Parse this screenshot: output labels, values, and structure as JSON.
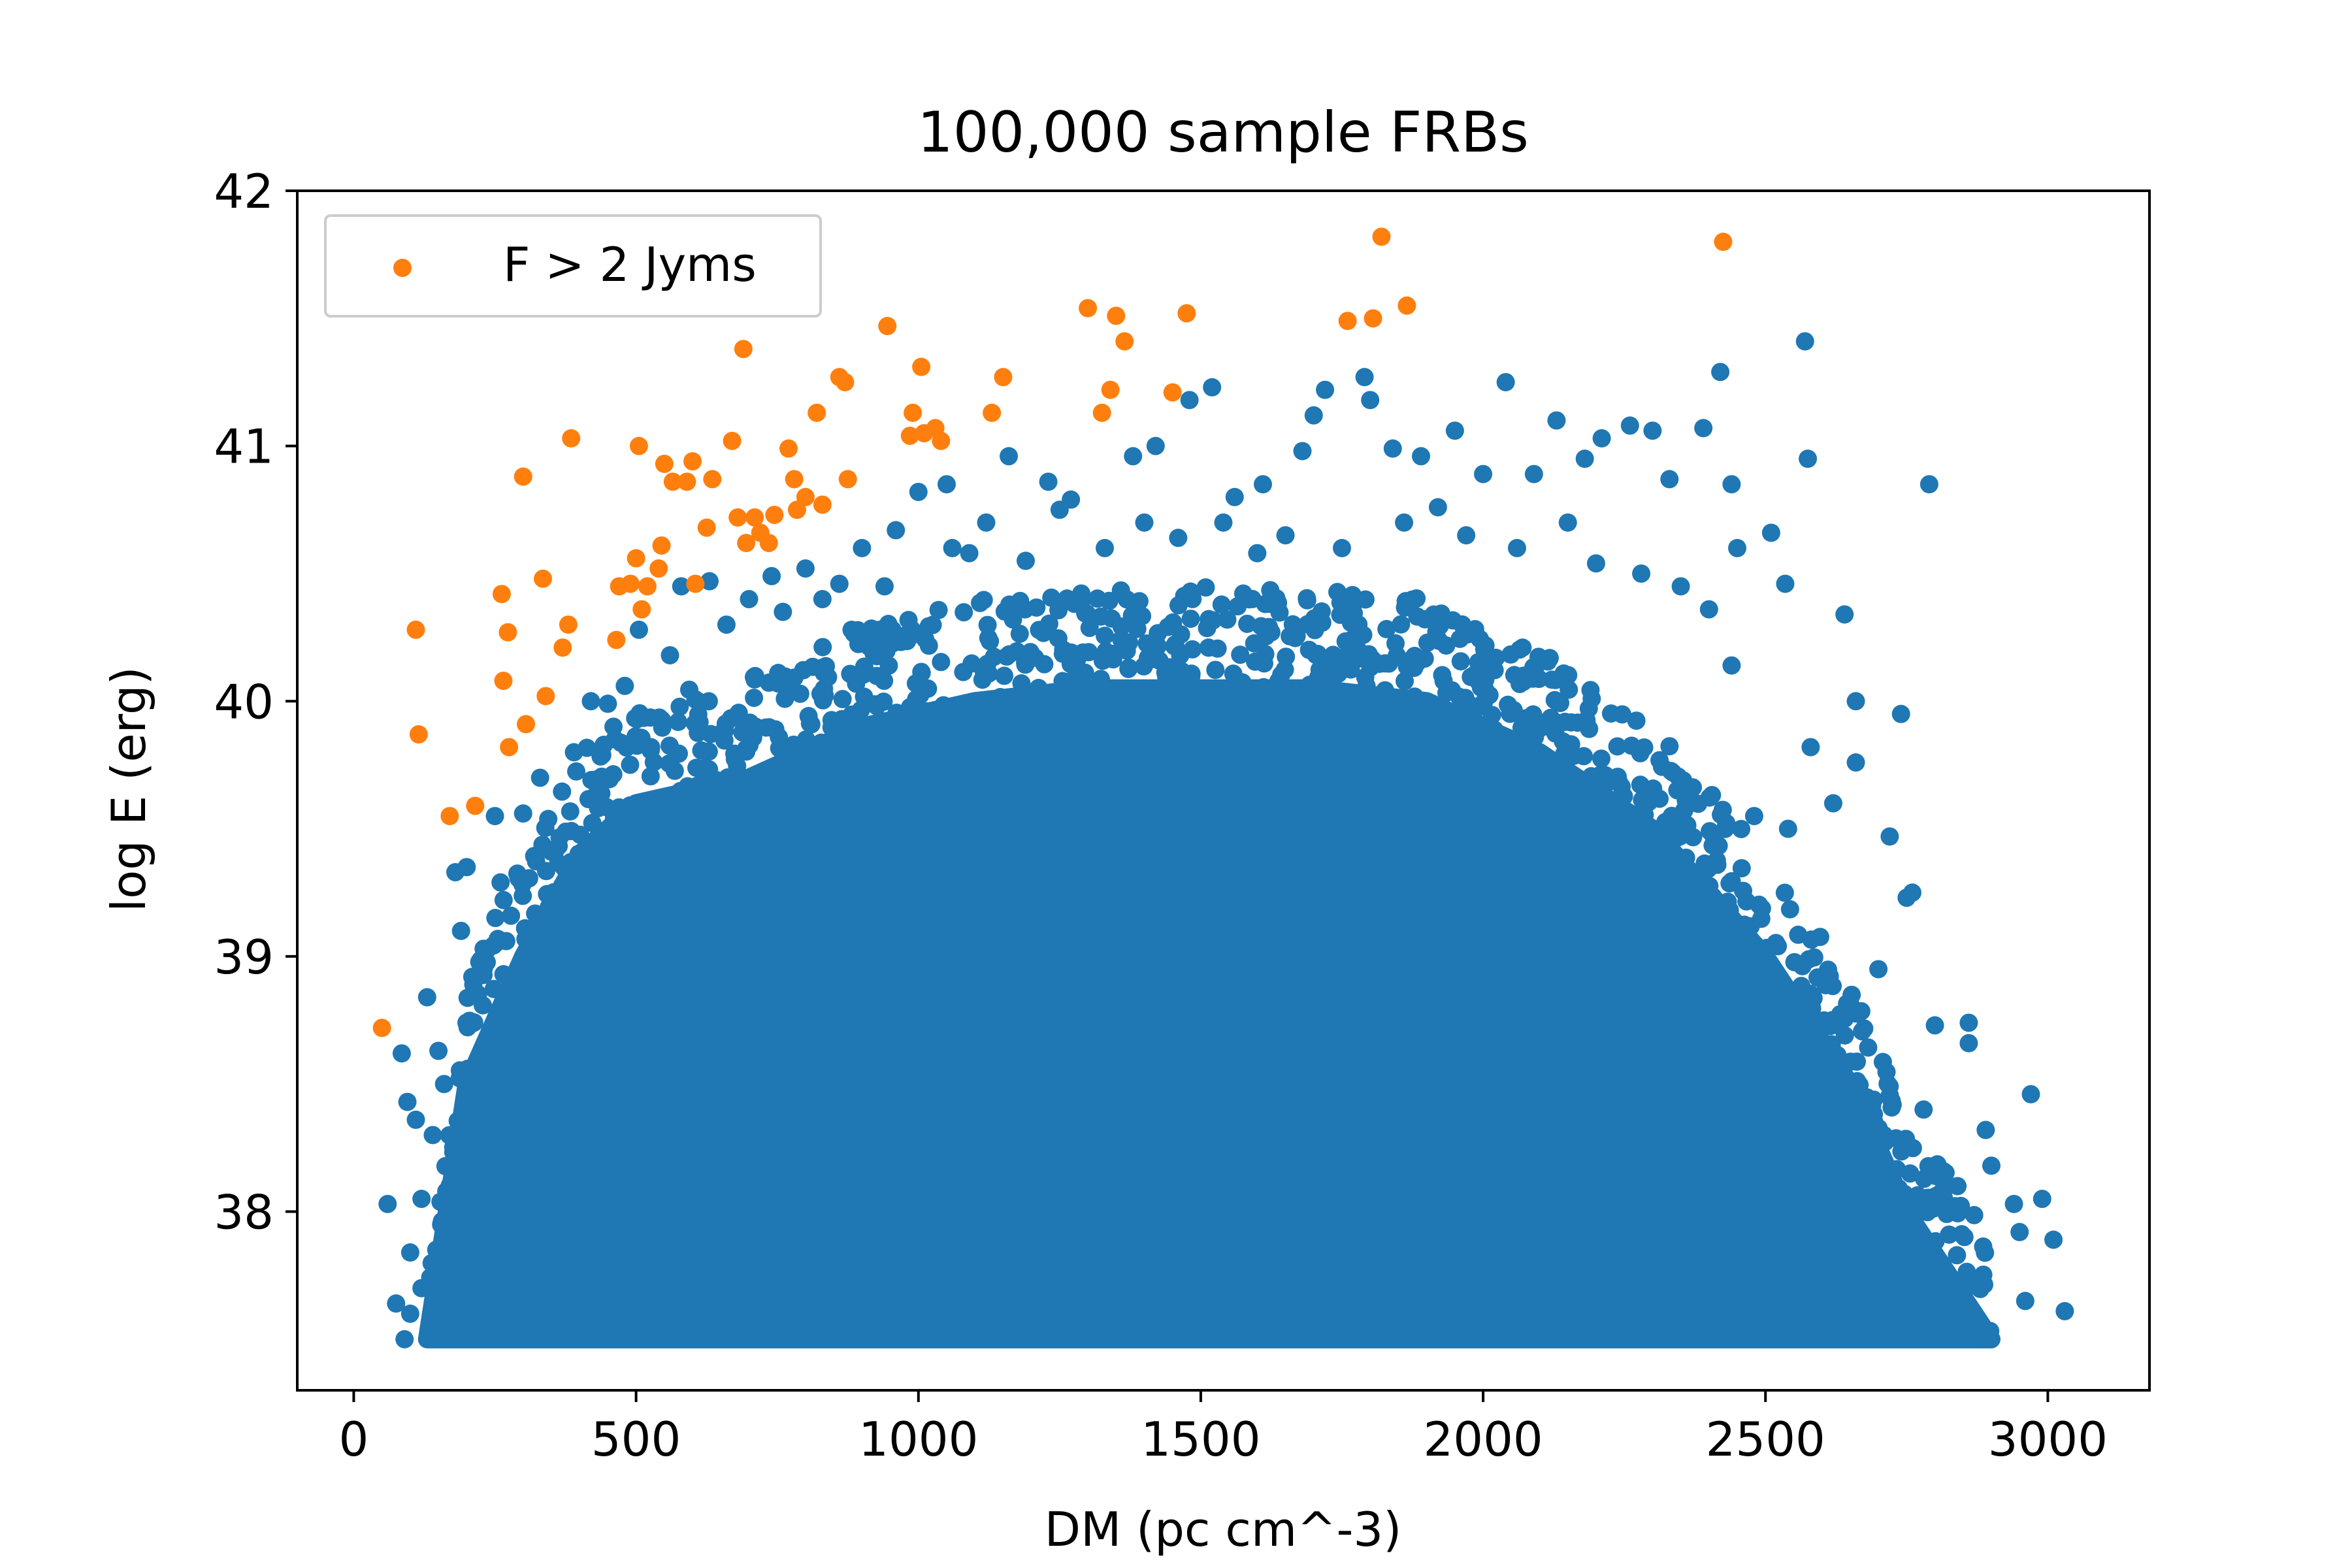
{
  "chart_data": {
    "type": "scatter",
    "title": "100,000 sample FRBs",
    "xlabel": "DM (pc cm^-3)",
    "ylabel": "log E (erg)",
    "xlim": [
      -100,
      3180
    ],
    "ylim": [
      37.3,
      42.0
    ],
    "xticks": [
      0,
      500,
      1000,
      1500,
      2000,
      2500,
      3000
    ],
    "yticks": [
      38,
      39,
      40,
      41,
      42
    ],
    "grid": false,
    "legend": {
      "position": "top-left",
      "entries": [
        "F > 2 Jyms"
      ]
    },
    "colors": {
      "bulk": "#1f77b4",
      "bright": "#ff7f0e"
    },
    "dense_region": {
      "note_free": true,
      "dm_min": 130,
      "dm_max": 2900,
      "logE_floor": 37.5,
      "upper_envelope": [
        [
          130,
          37.5
        ],
        [
          200,
          38.5
        ],
        [
          300,
          39.0
        ],
        [
          400,
          39.4
        ],
        [
          500,
          39.6
        ],
        [
          700,
          39.7
        ],
        [
          900,
          39.9
        ],
        [
          1100,
          40.0
        ],
        [
          1300,
          40.05
        ],
        [
          1500,
          40.05
        ],
        [
          1700,
          40.05
        ],
        [
          1900,
          40.0
        ],
        [
          2100,
          39.8
        ],
        [
          2300,
          39.5
        ],
        [
          2500,
          39.0
        ],
        [
          2650,
          38.5
        ],
        [
          2750,
          38.0
        ],
        [
          2900,
          37.5
        ]
      ]
    },
    "series": [
      {
        "name": "F > 2 Jyms",
        "color": "#ff7f0e",
        "points": [
          [
            50,
            38.72
          ],
          [
            110,
            40.28
          ],
          [
            115,
            39.87
          ],
          [
            170,
            39.55
          ],
          [
            215,
            39.59
          ],
          [
            262,
            40.42
          ],
          [
            265,
            40.08
          ],
          [
            273,
            40.27
          ],
          [
            275,
            39.82
          ],
          [
            300,
            40.88
          ],
          [
            305,
            39.91
          ],
          [
            335,
            40.48
          ],
          [
            340,
            40.02
          ],
          [
            370,
            40.21
          ],
          [
            380,
            40.3
          ],
          [
            385,
            41.03
          ],
          [
            465,
            40.24
          ],
          [
            470,
            40.45
          ],
          [
            490,
            40.46
          ],
          [
            500,
            40.56
          ],
          [
            505,
            41.0
          ],
          [
            510,
            40.36
          ],
          [
            520,
            40.45
          ],
          [
            540,
            40.52
          ],
          [
            545,
            40.61
          ],
          [
            550,
            40.93
          ],
          [
            565,
            40.86
          ],
          [
            590,
            40.86
          ],
          [
            600,
            40.94
          ],
          [
            605,
            40.46
          ],
          [
            625,
            40.68
          ],
          [
            635,
            40.87
          ],
          [
            670,
            41.02
          ],
          [
            680,
            40.72
          ],
          [
            690,
            41.38
          ],
          [
            695,
            40.62
          ],
          [
            710,
            40.72
          ],
          [
            720,
            40.66
          ],
          [
            735,
            40.62
          ],
          [
            745,
            40.73
          ],
          [
            770,
            40.99
          ],
          [
            780,
            40.87
          ],
          [
            785,
            40.75
          ],
          [
            800,
            40.8
          ],
          [
            820,
            41.13
          ],
          [
            830,
            40.77
          ],
          [
            860,
            41.27
          ],
          [
            875,
            40.87
          ],
          [
            870,
            41.25
          ],
          [
            945,
            41.47
          ],
          [
            985,
            41.04
          ],
          [
            990,
            41.13
          ],
          [
            1005,
            41.31
          ],
          [
            1010,
            41.05
          ],
          [
            1030,
            41.07
          ],
          [
            1040,
            41.02
          ],
          [
            1130,
            41.13
          ],
          [
            1150,
            41.27
          ],
          [
            1300,
            41.54
          ],
          [
            1325,
            41.13
          ],
          [
            1340,
            41.22
          ],
          [
            1350,
            41.51
          ],
          [
            1365,
            41.41
          ],
          [
            1450,
            41.21
          ],
          [
            1475,
            41.52
          ],
          [
            1760,
            41.49
          ],
          [
            1805,
            41.5
          ],
          [
            1820,
            41.82
          ],
          [
            1865,
            41.55
          ],
          [
            2425,
            41.8
          ]
        ]
      },
      {
        "name": "",
        "color": "#1f77b4",
        "points": [
          [
            60,
            38.03
          ],
          [
            75,
            37.64
          ],
          [
            85,
            38.62
          ],
          [
            90,
            37.5
          ],
          [
            95,
            38.43
          ],
          [
            100,
            37.84
          ],
          [
            110,
            38.36
          ],
          [
            120,
            38.05
          ],
          [
            130,
            38.84
          ],
          [
            150,
            38.63
          ],
          [
            160,
            38.5
          ],
          [
            180,
            39.33
          ],
          [
            200,
            39.35
          ],
          [
            210,
            38.92
          ],
          [
            230,
            39.03
          ],
          [
            260,
            39.29
          ],
          [
            270,
            39.06
          ],
          [
            300,
            39.56
          ],
          [
            350,
            39.41
          ],
          [
            420,
            40.0
          ],
          [
            450,
            39.99
          ],
          [
            480,
            40.06
          ],
          [
            505,
            40.28
          ],
          [
            580,
            40.45
          ],
          [
            630,
            40.47
          ],
          [
            700,
            40.4
          ],
          [
            740,
            40.49
          ],
          [
            800,
            40.52
          ],
          [
            860,
            40.46
          ],
          [
            900,
            40.6
          ],
          [
            960,
            40.67
          ],
          [
            1000,
            40.82
          ],
          [
            1050,
            40.85
          ],
          [
            1090,
            40.58
          ],
          [
            1160,
            40.96
          ],
          [
            1230,
            40.86
          ],
          [
            1270,
            40.79
          ],
          [
            1380,
            40.96
          ],
          [
            1420,
            41.0
          ],
          [
            1480,
            41.18
          ],
          [
            1520,
            41.23
          ],
          [
            1560,
            40.8
          ],
          [
            1610,
            40.85
          ],
          [
            1680,
            40.98
          ],
          [
            1700,
            41.12
          ],
          [
            1720,
            41.22
          ],
          [
            1790,
            41.27
          ],
          [
            1800,
            41.18
          ],
          [
            1840,
            40.99
          ],
          [
            1890,
            40.96
          ],
          [
            1950,
            41.06
          ],
          [
            2000,
            40.89
          ],
          [
            2040,
            41.25
          ],
          [
            2090,
            40.89
          ],
          [
            2130,
            41.1
          ],
          [
            2180,
            40.95
          ],
          [
            2210,
            41.03
          ],
          [
            2260,
            41.08
          ],
          [
            2300,
            41.06
          ],
          [
            2330,
            40.87
          ],
          [
            2390,
            41.07
          ],
          [
            2420,
            41.29
          ],
          [
            2440,
            40.85
          ],
          [
            2450,
            40.6
          ],
          [
            2510,
            40.66
          ],
          [
            2535,
            40.46
          ],
          [
            2570,
            41.41
          ],
          [
            2575,
            40.95
          ],
          [
            2640,
            40.34
          ],
          [
            2660,
            40.0
          ],
          [
            2660,
            39.76
          ],
          [
            2720,
            39.47
          ],
          [
            2740,
            39.95
          ],
          [
            2750,
            39.23
          ],
          [
            2760,
            39.25
          ],
          [
            2790,
            40.85
          ],
          [
            2800,
            38.73
          ],
          [
            2860,
            38.74
          ],
          [
            2860,
            38.66
          ],
          [
            2890,
            38.32
          ],
          [
            2900,
            38.18
          ],
          [
            2940,
            38.03
          ],
          [
            2960,
            37.65
          ],
          [
            2970,
            38.46
          ],
          [
            2990,
            38.05
          ],
          [
            3010,
            37.89
          ],
          [
            3030,
            37.61
          ],
          [
            2950,
            37.92
          ],
          [
            2840,
            38.1
          ],
          [
            2810,
            37.8
          ],
          [
            2780,
            38.4
          ],
          [
            2700,
            38.95
          ],
          [
            2620,
            39.6
          ],
          [
            2580,
            39.82
          ],
          [
            2540,
            39.5
          ],
          [
            2480,
            39.55
          ],
          [
            2440,
            40.14
          ],
          [
            2400,
            40.36
          ],
          [
            2350,
            40.45
          ],
          [
            2280,
            40.5
          ],
          [
            2200,
            40.54
          ],
          [
            2150,
            40.7
          ],
          [
            2060,
            40.6
          ],
          [
            1970,
            40.65
          ],
          [
            1920,
            40.76
          ],
          [
            1860,
            40.7
          ],
          [
            1750,
            40.6
          ],
          [
            1650,
            40.65
          ],
          [
            1600,
            40.58
          ],
          [
            1540,
            40.7
          ],
          [
            1460,
            40.64
          ],
          [
            1400,
            40.7
          ],
          [
            1330,
            40.6
          ],
          [
            1250,
            40.75
          ],
          [
            1190,
            40.55
          ],
          [
            1120,
            40.7
          ],
          [
            1060,
            40.6
          ],
          [
            940,
            40.45
          ],
          [
            830,
            40.4
          ],
          [
            760,
            40.35
          ],
          [
            660,
            40.3
          ],
          [
            560,
            40.18
          ],
          [
            460,
            39.9
          ],
          [
            390,
            39.8
          ],
          [
            330,
            39.7
          ],
          [
            250,
            39.55
          ],
          [
            190,
            39.1
          ],
          [
            140,
            38.3
          ],
          [
            120,
            37.7
          ],
          [
            100,
            37.6
          ]
        ]
      }
    ]
  }
}
